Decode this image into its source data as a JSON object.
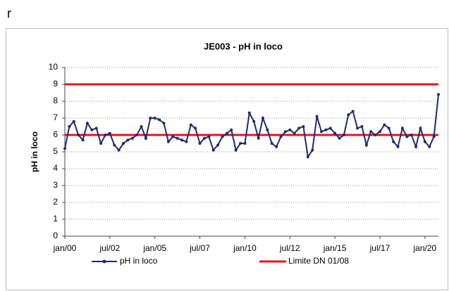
{
  "heading": "r",
  "chart_data": {
    "type": "line",
    "title": "JE003  - pH  in loco",
    "y_label": "pH in loco",
    "x": [
      "2000-01",
      "2000-04",
      "2000-07",
      "2000-10",
      "2001-01",
      "2001-04",
      "2001-07",
      "2001-10",
      "2002-01",
      "2002-04",
      "2002-07",
      "2002-10",
      "2003-01",
      "2003-04",
      "2003-07",
      "2003-10",
      "2004-01",
      "2004-04",
      "2004-07",
      "2004-10",
      "2005-01",
      "2005-04",
      "2005-07",
      "2005-10",
      "2006-01",
      "2006-04",
      "2006-07",
      "2006-10",
      "2007-01",
      "2007-04",
      "2007-07",
      "2007-10",
      "2008-01",
      "2008-04",
      "2008-07",
      "2008-10",
      "2009-01",
      "2009-04",
      "2009-07",
      "2009-10",
      "2010-01",
      "2010-04",
      "2010-07",
      "2010-10",
      "2011-01",
      "2011-04",
      "2011-07",
      "2011-10",
      "2012-01",
      "2012-04",
      "2012-07",
      "2012-10",
      "2013-01",
      "2013-04",
      "2013-07",
      "2013-10",
      "2014-01",
      "2014-04",
      "2014-07",
      "2014-10",
      "2015-01",
      "2015-04",
      "2015-07",
      "2015-10",
      "2016-01",
      "2016-04",
      "2016-07",
      "2016-10",
      "2017-01",
      "2017-04",
      "2017-07",
      "2017-10",
      "2018-01",
      "2018-04",
      "2018-07",
      "2018-10",
      "2019-01",
      "2019-04",
      "2019-07",
      "2019-10",
      "2020-01",
      "2020-04",
      "2020-07",
      "2020-10"
    ],
    "series": [
      {
        "name": "pH in loco",
        "color": "#1f2a6b",
        "values": [
          5.2,
          6.5,
          6.8,
          6.0,
          5.7,
          6.7,
          6.3,
          6.4,
          5.5,
          6.0,
          6.1,
          5.4,
          5.1,
          5.5,
          5.7,
          5.8,
          6.0,
          6.5,
          5.8,
          7.0,
          7.0,
          6.9,
          6.7,
          5.6,
          5.9,
          5.8,
          5.7,
          5.6,
          6.6,
          6.4,
          5.5,
          5.8,
          5.9,
          5.1,
          5.4,
          5.9,
          6.1,
          6.3,
          5.1,
          5.5,
          5.5,
          7.3,
          6.8,
          5.8,
          7.0,
          6.3,
          5.5,
          5.3,
          5.9,
          6.2,
          6.3,
          6.1,
          6.4,
          6.5,
          4.7,
          5.1,
          7.1,
          6.2,
          6.3,
          6.4,
          6.1,
          5.8,
          6.0,
          7.2,
          7.4,
          6.4,
          6.5,
          5.4,
          6.2,
          6.0,
          6.2,
          6.6,
          6.4,
          5.6,
          5.3,
          6.4,
          5.9,
          6.0,
          5.3,
          6.4,
          5.6,
          5.3,
          5.9,
          8.4
        ]
      }
    ],
    "limits": {
      "name": "Limite DN 01/08",
      "color": "#e8141c",
      "values": [
        9,
        6
      ]
    },
    "xlim": [
      "2000-01",
      "2020-10"
    ],
    "xticks": [
      {
        "value": "2000-01",
        "label": "jan/00"
      },
      {
        "value": "2002-07",
        "label": "jul/02"
      },
      {
        "value": "2005-01",
        "label": "jan/05"
      },
      {
        "value": "2007-07",
        "label": "jul/07"
      },
      {
        "value": "2010-01",
        "label": "jan/10"
      },
      {
        "value": "2012-07",
        "label": "jul/12"
      },
      {
        "value": "2015-01",
        "label": "jan/15"
      },
      {
        "value": "2017-07",
        "label": "jul/17"
      },
      {
        "value": "2020-01",
        "label": "jan/20"
      }
    ],
    "ylim": [
      0,
      10
    ],
    "yticks": [
      0,
      1,
      2,
      3,
      4,
      5,
      6,
      7,
      8,
      9,
      10
    ],
    "grid": true
  }
}
